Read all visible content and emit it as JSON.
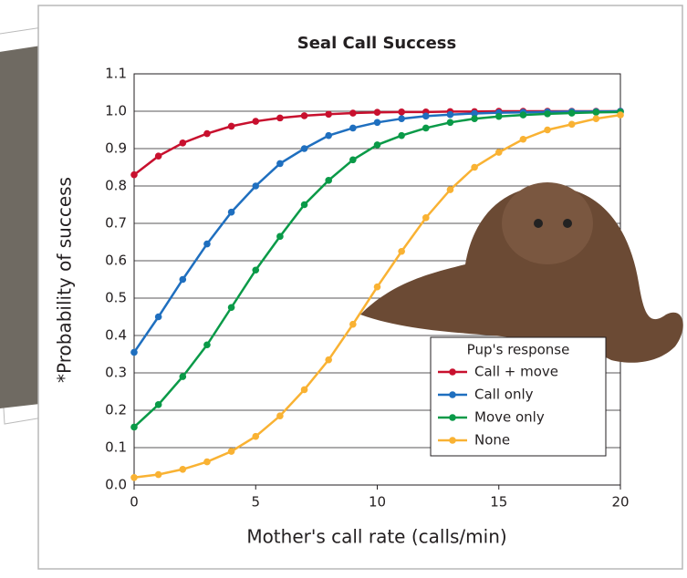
{
  "chart_data": {
    "type": "line",
    "title": "Seal Call Success",
    "x_label": "Mother's call rate (calls/min)",
    "y_label": "*Probability of success",
    "x": [
      0,
      1,
      2,
      3,
      4,
      5,
      6,
      7,
      8,
      9,
      10,
      11,
      12,
      13,
      14,
      15,
      16,
      17,
      18,
      19,
      20
    ],
    "series": [
      {
        "name": "Call + move",
        "color": "#c8102e",
        "values": [
          0.83,
          0.88,
          0.915,
          0.94,
          0.96,
          0.973,
          0.982,
          0.988,
          0.992,
          0.995,
          0.997,
          0.998,
          0.998,
          0.999,
          0.999,
          1.0,
          1.0,
          1.0,
          1.0,
          1.0,
          1.0
        ]
      },
      {
        "name": "Call only",
        "color": "#1f6fbf",
        "values": [
          0.355,
          0.45,
          0.55,
          0.645,
          0.73,
          0.8,
          0.86,
          0.9,
          0.935,
          0.955,
          0.97,
          0.98,
          0.987,
          0.991,
          0.994,
          0.996,
          0.997,
          0.998,
          0.999,
          0.999,
          1.0
        ]
      },
      {
        "name": "Move only",
        "color": "#0a9a48",
        "values": [
          0.155,
          0.215,
          0.29,
          0.375,
          0.475,
          0.575,
          0.665,
          0.75,
          0.815,
          0.87,
          0.91,
          0.935,
          0.955,
          0.97,
          0.98,
          0.986,
          0.99,
          0.993,
          0.995,
          0.997,
          0.998
        ]
      },
      {
        "name": "None",
        "color": "#f9b233",
        "values": [
          0.02,
          0.028,
          0.042,
          0.062,
          0.09,
          0.13,
          0.185,
          0.255,
          0.335,
          0.43,
          0.53,
          0.625,
          0.715,
          0.79,
          0.85,
          0.89,
          0.925,
          0.95,
          0.965,
          0.98,
          0.99
        ]
      }
    ],
    "legend_title": "Pup's response",
    "xlim": [
      0,
      20
    ],
    "xticks": [
      0,
      5,
      10,
      15,
      20
    ],
    "ylim": [
      0,
      1.1
    ],
    "yticks": [
      {
        "value": 0,
        "label": "0.0"
      },
      0.1,
      0.2,
      0.3,
      0.4,
      0.5,
      0.6,
      0.7,
      0.8,
      0.9,
      {
        "value": 1,
        "label": "1.0"
      },
      1.1
    ],
    "grid": true
  }
}
